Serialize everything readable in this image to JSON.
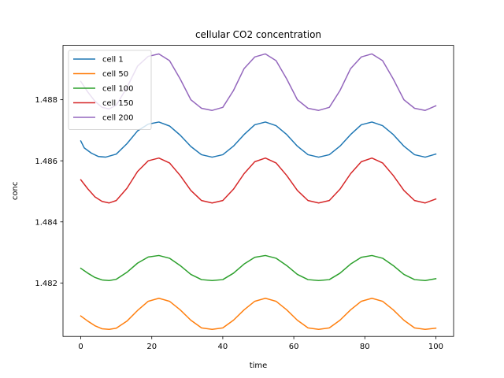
{
  "chart_data": {
    "type": "line",
    "title": "cellular CO2 concentration",
    "xlabel": "time",
    "ylabel": "conc",
    "xlim": [
      -5,
      105
    ],
    "ylim": [
      1.48025,
      1.48978
    ],
    "xticks": [
      0,
      20,
      40,
      60,
      80,
      100
    ],
    "xtick_labels": [
      "0",
      "20",
      "40",
      "60",
      "80",
      "100"
    ],
    "yticks": [
      1.482,
      1.484,
      1.486,
      1.488
    ],
    "ytick_labels": [
      "1.482",
      "1.484",
      "1.486",
      "1.488"
    ],
    "grid": false,
    "legend_position": "top-left",
    "series": [
      {
        "name": "cell 1",
        "color": "#1f77b4",
        "x": [
          0,
          1,
          3,
          5,
          7,
          10,
          13,
          16,
          19,
          22,
          25,
          28,
          31,
          34,
          37,
          40,
          43,
          46,
          49,
          52,
          55,
          58,
          61,
          64,
          67,
          70,
          73,
          76,
          79,
          82,
          85,
          88,
          91,
          94,
          97,
          100
        ],
        "y": [
          1.48665,
          1.48642,
          1.48625,
          1.48614,
          1.48612,
          1.48622,
          1.48656,
          1.48698,
          1.4872,
          1.48727,
          1.48714,
          1.48684,
          1.48647,
          1.4862,
          1.48612,
          1.4862,
          1.48648,
          1.48686,
          1.48718,
          1.48727,
          1.48715,
          1.48686,
          1.48648,
          1.4862,
          1.48612,
          1.4862,
          1.48648,
          1.48686,
          1.48718,
          1.48727,
          1.48715,
          1.48686,
          1.48648,
          1.4862,
          1.48612,
          1.48622
        ]
      },
      {
        "name": "cell 50",
        "color": "#ff7f0e",
        "x": [
          0,
          2,
          4,
          6,
          8,
          10,
          13,
          16,
          19,
          22,
          25,
          28,
          31,
          34,
          37,
          40,
          43,
          46,
          49,
          52,
          55,
          58,
          61,
          64,
          67,
          70,
          73,
          76,
          79,
          82,
          85,
          88,
          91,
          94,
          97,
          100
        ],
        "y": [
          1.48092,
          1.48075,
          1.4806,
          1.4805,
          1.48048,
          1.48052,
          1.48075,
          1.4811,
          1.4814,
          1.4815,
          1.4814,
          1.48112,
          1.48078,
          1.48053,
          1.48048,
          1.48053,
          1.48078,
          1.48112,
          1.4814,
          1.4815,
          1.4814,
          1.48112,
          1.48078,
          1.48053,
          1.48048,
          1.48053,
          1.48078,
          1.48112,
          1.4814,
          1.4815,
          1.4814,
          1.48112,
          1.48078,
          1.48053,
          1.48048,
          1.48052
        ]
      },
      {
        "name": "cell 100",
        "color": "#2ca02c",
        "x": [
          0,
          2,
          4,
          6,
          8,
          10,
          13,
          16,
          19,
          22,
          25,
          28,
          31,
          34,
          37,
          40,
          43,
          46,
          49,
          52,
          55,
          58,
          61,
          64,
          67,
          70,
          73,
          76,
          79,
          82,
          85,
          88,
          91,
          94,
          97,
          100
        ],
        "y": [
          1.48248,
          1.48232,
          1.48218,
          1.4821,
          1.48208,
          1.48212,
          1.48235,
          1.48265,
          1.48285,
          1.4829,
          1.48281,
          1.48257,
          1.48228,
          1.48211,
          1.48208,
          1.48211,
          1.48232,
          1.48262,
          1.48284,
          1.4829,
          1.48281,
          1.48257,
          1.48228,
          1.48211,
          1.48208,
          1.48211,
          1.48232,
          1.48262,
          1.48284,
          1.4829,
          1.48281,
          1.48257,
          1.48228,
          1.48211,
          1.48208,
          1.48214
        ]
      },
      {
        "name": "cell 150",
        "color": "#d62728",
        "x": [
          0,
          2,
          4,
          6,
          8,
          10,
          13,
          16,
          19,
          22,
          25,
          28,
          31,
          34,
          37,
          40,
          43,
          46,
          49,
          52,
          55,
          58,
          61,
          64,
          67,
          70,
          73,
          76,
          79,
          82,
          85,
          88,
          91,
          94,
          97,
          100
        ],
        "y": [
          1.48538,
          1.48508,
          1.48482,
          1.48467,
          1.48462,
          1.4847,
          1.4851,
          1.48565,
          1.486,
          1.48609,
          1.48593,
          1.48552,
          1.48503,
          1.4847,
          1.48462,
          1.4847,
          1.48507,
          1.48558,
          1.48597,
          1.48609,
          1.48593,
          1.48552,
          1.48503,
          1.4847,
          1.48462,
          1.4847,
          1.48507,
          1.48558,
          1.48597,
          1.48609,
          1.48593,
          1.48552,
          1.48503,
          1.4847,
          1.48462,
          1.48475
        ]
      },
      {
        "name": "cell 200",
        "color": "#9467bd",
        "x": [
          0,
          2,
          4,
          6,
          8,
          10,
          13,
          16,
          19,
          22,
          25,
          28,
          31,
          34,
          37,
          40,
          43,
          46,
          49,
          52,
          55,
          58,
          61,
          64,
          67,
          70,
          73,
          76,
          79,
          82,
          85,
          88,
          91,
          94,
          97,
          100
        ],
        "y": [
          1.4886,
          1.48825,
          1.48795,
          1.48775,
          1.4877,
          1.48782,
          1.4884,
          1.4891,
          1.48942,
          1.4895,
          1.48928,
          1.48868,
          1.488,
          1.48772,
          1.48765,
          1.48775,
          1.4883,
          1.48902,
          1.4894,
          1.4895,
          1.48928,
          1.48868,
          1.488,
          1.48772,
          1.48765,
          1.48775,
          1.4883,
          1.48902,
          1.4894,
          1.4895,
          1.48928,
          1.48868,
          1.488,
          1.48772,
          1.48765,
          1.4878
        ]
      }
    ]
  }
}
